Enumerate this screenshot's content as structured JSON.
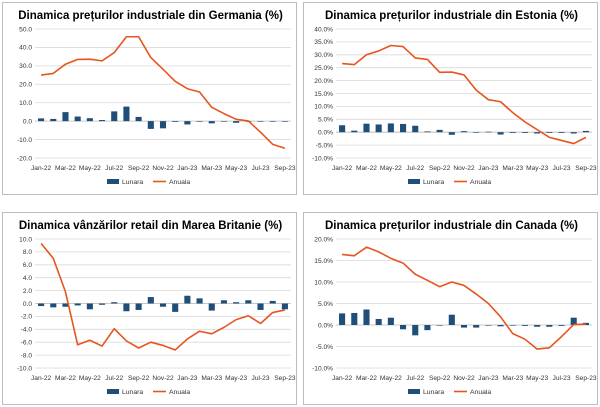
{
  "colors": {
    "bar": "#1f4e79",
    "line": "#e8541e",
    "grid": "#d9d9d9"
  },
  "chart_data": [
    {
      "type": "bar+line",
      "title": "Dinamica prețurilor industriale din Germania (%)",
      "ylim": [
        -20,
        50
      ],
      "yticks": [
        -20,
        -10,
        0,
        10,
        20,
        30,
        40,
        50
      ],
      "ytick_labels": [
        "-20.0",
        "-10.0",
        "0.0",
        "10.0",
        "20.0",
        "30.0",
        "40.0",
        "50.0"
      ],
      "categories": [
        "Jan-22",
        "Feb-22",
        "Mar-22",
        "Apr-22",
        "May-22",
        "Jun-22",
        "Jul-22",
        "Aug-22",
        "Sep-22",
        "Oct-22",
        "Nov-22",
        "Dec-22",
        "Jan-23",
        "Feb-23",
        "Mar-23",
        "Apr-23",
        "May-23",
        "Jun-23",
        "Jul-23",
        "Aug-23",
        "Sep-23"
      ],
      "xtick_labels": [
        "Jan-22",
        "Mar-22",
        "May-22",
        "Jul-22",
        "Sep-22",
        "Nov-22",
        "Jan-23",
        "Mar-23",
        "May-23",
        "Jul-23",
        "Sep-23"
      ],
      "series": [
        {
          "name": "Lunara",
          "kind": "bar",
          "values": [
            1.5,
            1.2,
            4.9,
            2.5,
            1.6,
            0.6,
            5.3,
            7.9,
            2.3,
            -4.2,
            -3.9,
            -0.4,
            -1.8,
            -0.3,
            -1.2,
            -0.2,
            -0.9,
            -0.1,
            -0.1,
            -0.2,
            -0.2
          ]
        },
        {
          "name": "Anuala",
          "kind": "line",
          "values": [
            25.0,
            25.9,
            30.9,
            33.5,
            33.6,
            32.7,
            37.2,
            45.8,
            45.8,
            34.5,
            28.2,
            21.6,
            17.6,
            15.8,
            7.5,
            4.1,
            1.0,
            0.1,
            -6.0,
            -12.6,
            -14.7
          ]
        }
      ],
      "legend": {
        "entries": [
          "Lunara",
          "Anuala"
        ],
        "position": "bottom"
      }
    },
    {
      "type": "bar+line",
      "title": "Dinamica prețurilor industriale din Estonia (%)",
      "ylim": [
        -10,
        40
      ],
      "yticks": [
        -10,
        -5,
        0,
        5,
        10,
        15,
        20,
        25,
        30,
        35,
        40
      ],
      "ytick_labels": [
        "-10.0%",
        "-5.0%",
        "0.0%",
        "5.0%",
        "10.0%",
        "15.0%",
        "20.0%",
        "25.0%",
        "30.0%",
        "35.0%",
        "40.0%"
      ],
      "categories": [
        "Jan-22",
        "Feb-22",
        "Mar-22",
        "Apr-22",
        "May-22",
        "Jun-22",
        "Jul-22",
        "Aug-22",
        "Sep-22",
        "Oct-22",
        "Nov-22",
        "Dec-22",
        "Jan-23",
        "Feb-23",
        "Mar-23",
        "Apr-23",
        "May-23",
        "Jun-23",
        "Jul-23",
        "Aug-23",
        "Sep-23"
      ],
      "xtick_labels": [
        "Jan-22",
        "Mar-22",
        "May-22",
        "Jul-22",
        "Sep-22",
        "Nov-22",
        "Jan-23",
        "Mar-23",
        "May-23",
        "Jul-23",
        "Sep-23"
      ],
      "series": [
        {
          "name": "Lunara",
          "kind": "bar",
          "values": [
            2.7,
            0.6,
            3.3,
            3.0,
            3.4,
            3.2,
            2.5,
            0.3,
            0.9,
            -1.0,
            0.4,
            -0.2,
            0.2,
            -0.9,
            -0.3,
            -0.3,
            -0.5,
            -0.3,
            -0.3,
            -0.5,
            0.5
          ]
        },
        {
          "name": "Anuala",
          "kind": "line",
          "values": [
            26.6,
            26.2,
            30.0,
            31.5,
            33.6,
            33.2,
            28.8,
            28.2,
            23.2,
            23.3,
            22.2,
            16.3,
            12.6,
            11.8,
            7.6,
            4.0,
            1.0,
            -2.0,
            -3.2,
            -4.4,
            -2.0
          ]
        }
      ],
      "legend": {
        "entries": [
          "Lunara",
          "Anuala"
        ],
        "position": "bottom"
      }
    },
    {
      "type": "bar+line",
      "title": "Dinamica vânzărilor retail din Marea Britanie (%)",
      "ylim": [
        -10,
        10
      ],
      "yticks": [
        -10,
        -8,
        -6,
        -4,
        -2,
        0,
        2,
        4,
        6,
        8,
        10
      ],
      "ytick_labels": [
        "-10.0",
        "-8.0",
        "-6.0",
        "-4.0",
        "-2.0",
        "0.0",
        "2.0",
        "4.0",
        "6.0",
        "8.0",
        "10.0"
      ],
      "categories": [
        "Jan-22",
        "Feb-22",
        "Mar-22",
        "Apr-22",
        "May-22",
        "Jun-22",
        "Jul-22",
        "Aug-22",
        "Sep-22",
        "Oct-22",
        "Nov-22",
        "Dec-22",
        "Jan-23",
        "Feb-23",
        "Mar-23",
        "Apr-23",
        "May-23",
        "Jun-23",
        "Jul-23",
        "Aug-23",
        "Sep-23"
      ],
      "xtick_labels": [
        "Jan-22",
        "Mar-22",
        "May-22",
        "Jul-22",
        "Sep-22",
        "Nov-22",
        "Jan-23",
        "Mar-23",
        "May-23",
        "Jul-23",
        "Sep-23"
      ],
      "series": [
        {
          "name": "Lunara",
          "kind": "bar",
          "values": [
            -0.4,
            -0.6,
            -0.5,
            -0.3,
            -0.9,
            -0.2,
            0.2,
            -1.2,
            -1.0,
            1.0,
            -0.5,
            -1.3,
            1.2,
            0.8,
            -1.1,
            0.5,
            0.2,
            0.5,
            -1.0,
            0.4,
            -0.9
          ]
        },
        {
          "name": "Anuala",
          "kind": "line",
          "values": [
            9.3,
            7.0,
            1.8,
            -6.4,
            -5.7,
            -6.6,
            -3.9,
            -5.8,
            -6.9,
            -6.0,
            -6.5,
            -7.2,
            -5.5,
            -4.3,
            -4.7,
            -3.7,
            -2.5,
            -1.9,
            -3.1,
            -1.4,
            -1.0
          ]
        }
      ],
      "legend": {
        "entries": [
          "Lunara",
          "Anuala"
        ],
        "position": "bottom"
      }
    },
    {
      "type": "bar+line",
      "title": "Dinamica prețurilor industriale din Canada (%)",
      "ylim": [
        -10,
        20
      ],
      "yticks": [
        -10,
        -5,
        0,
        5,
        10,
        15,
        20
      ],
      "ytick_labels": [
        "-10.0%",
        "-5.0%",
        "0.0%",
        "5.0%",
        "10.0%",
        "15.0%",
        "20.0%"
      ],
      "categories": [
        "Jan-22",
        "Feb-22",
        "Mar-22",
        "Apr-22",
        "May-22",
        "Jun-22",
        "Jul-22",
        "Aug-22",
        "Sep-22",
        "Oct-22",
        "Nov-22",
        "Dec-22",
        "Jan-23",
        "Feb-23",
        "Mar-23",
        "Apr-23",
        "May-23",
        "Jun-23",
        "Jul-23",
        "Aug-23",
        "Sep-23"
      ],
      "xtick_labels": [
        "Jan-22",
        "Mar-22",
        "May-22",
        "Jul-22",
        "Sep-22",
        "Nov-22",
        "Jan-23",
        "Mar-23",
        "May-23",
        "Jul-23",
        "Sep-23"
      ],
      "series": [
        {
          "name": "Lunara",
          "kind": "bar",
          "values": [
            2.7,
            2.8,
            3.6,
            1.4,
            1.7,
            -1.0,
            -2.4,
            -1.2,
            -0.1,
            2.4,
            -0.6,
            -0.6,
            -0.1,
            -0.3,
            -0.1,
            -0.2,
            -0.4,
            -0.4,
            -0.2,
            1.7,
            0.5
          ]
        },
        {
          "name": "Anuala",
          "kind": "line",
          "values": [
            16.4,
            16.1,
            18.1,
            17.0,
            15.5,
            14.4,
            11.8,
            10.4,
            8.9,
            10.0,
            9.2,
            7.2,
            5.0,
            1.9,
            -2.0,
            -3.3,
            -5.6,
            -5.3,
            -2.7,
            0.1,
            0.2
          ]
        }
      ],
      "legend": {
        "entries": [
          "Lunara",
          "Anuala"
        ],
        "position": "bottom"
      }
    }
  ]
}
